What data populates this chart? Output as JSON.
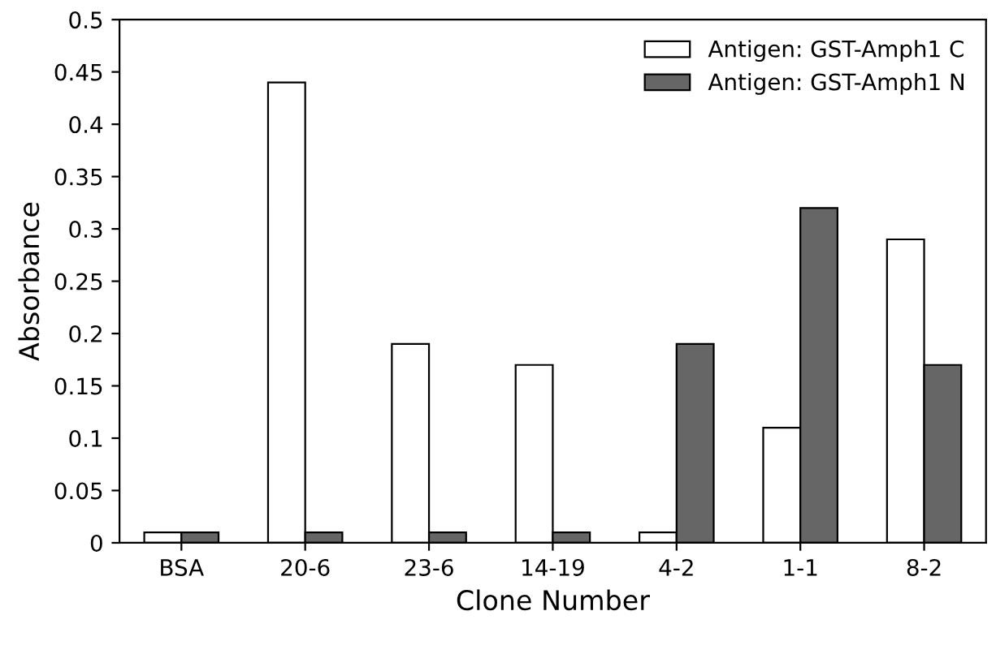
{
  "chart_data": {
    "type": "bar",
    "xlabel": "Clone Number",
    "ylabel": "Absorbance",
    "categories": [
      "BSA",
      "20-6",
      "23-6",
      "14-19",
      "4-2",
      "1-1",
      "8-2"
    ],
    "series": [
      {
        "name": "Antigen: GST-Amph1 C",
        "color": "#ffffff",
        "values": [
          0.01,
          0.44,
          0.19,
          0.17,
          0.01,
          0.11,
          0.29
        ]
      },
      {
        "name": "Antigen: GST-Amph1 N",
        "color": "#666666",
        "values": [
          0.01,
          0.01,
          0.01,
          0.01,
          0.19,
          0.32,
          0.17
        ]
      }
    ],
    "ylim": [
      0,
      0.5
    ],
    "yticks": [
      0,
      0.05,
      0.1,
      0.15,
      0.2,
      0.25,
      0.3,
      0.35,
      0.4,
      0.45,
      0.5
    ],
    "grid": false,
    "legend": "top right"
  }
}
